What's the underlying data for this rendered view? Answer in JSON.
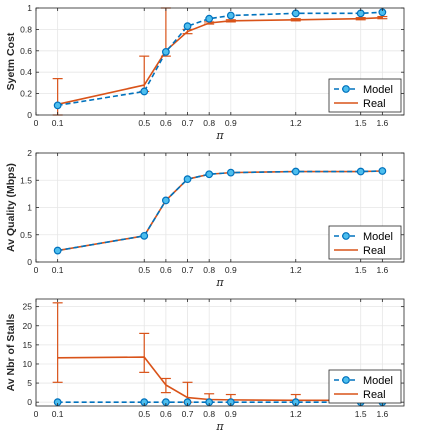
{
  "colors": {
    "model": "#0072BD",
    "real": "#D95319",
    "marker_face": "#4DBEEE",
    "grid": "#e6e6e6",
    "axis": "#262626"
  },
  "chart_data": [
    {
      "type": "line",
      "ylabel": "Syetm Cost",
      "xlabel": "π",
      "xlim": [
        0,
        1.7
      ],
      "ylim": [
        0,
        1
      ],
      "xticks": [
        0,
        0.1,
        0.5,
        0.6,
        0.7,
        0.8,
        0.9,
        1.2,
        1.5,
        1.6
      ],
      "xtick_labels": [
        "0",
        "0.1",
        "0.5",
        "0.6",
        "0.7",
        "0.8",
        "0.9",
        "1.2",
        "1.5",
        "1.6"
      ],
      "yticks": [
        0,
        0.2,
        0.4,
        0.6,
        0.8,
        1
      ],
      "ytick_labels": [
        "0",
        "0.2",
        "0.4",
        "0.6",
        "0.8",
        "1"
      ],
      "x": [
        0.1,
        0.5,
        0.6,
        0.7,
        0.8,
        0.9,
        1.2,
        1.5,
        1.6
      ],
      "series": [
        {
          "name": "Model",
          "values": [
            0.09,
            0.22,
            0.59,
            0.83,
            0.9,
            0.93,
            0.95,
            0.95,
            0.96
          ]
        },
        {
          "name": "Real",
          "values": [
            0.1,
            0.28,
            0.6,
            0.78,
            0.86,
            0.88,
            0.89,
            0.9,
            0.91
          ],
          "err_low": [
            0.0,
            0.22,
            0.55,
            0.76,
            0.85,
            0.87,
            0.88,
            0.89,
            0.9
          ],
          "err_high": [
            0.34,
            0.55,
            1.0,
            0.8,
            0.87,
            0.89,
            0.9,
            0.91,
            0.92
          ]
        }
      ],
      "legend": "bottom-right",
      "grid": true
    },
    {
      "type": "line",
      "ylabel": "Av Quality (Mbps)",
      "xlabel": "π",
      "xlim": [
        0,
        1.7
      ],
      "ylim": [
        0,
        2
      ],
      "xticks": [
        0,
        0.1,
        0.5,
        0.6,
        0.7,
        0.8,
        0.9,
        1.2,
        1.5,
        1.6
      ],
      "xtick_labels": [
        "0",
        "0.1",
        "0.5",
        "0.6",
        "0.7",
        "0.8",
        "0.9",
        "1.2",
        "1.5",
        "1.6"
      ],
      "yticks": [
        0,
        0.5,
        1,
        1.5,
        2
      ],
      "ytick_labels": [
        "0",
        "0.5",
        "1",
        "1.5",
        "2"
      ],
      "x": [
        0.1,
        0.5,
        0.6,
        0.7,
        0.8,
        0.9,
        1.2,
        1.5,
        1.6
      ],
      "series": [
        {
          "name": "Model",
          "values": [
            0.21,
            0.48,
            1.13,
            1.52,
            1.61,
            1.64,
            1.66,
            1.66,
            1.67
          ]
        },
        {
          "name": "Real",
          "values": [
            0.21,
            0.48,
            1.13,
            1.52,
            1.61,
            1.64,
            1.66,
            1.66,
            1.67
          ]
        }
      ],
      "legend": "bottom-right",
      "grid": true
    },
    {
      "type": "line",
      "ylabel": "Av Nbr of Stalls",
      "xlabel": "π",
      "xlim": [
        0,
        1.7
      ],
      "ylim": [
        -1,
        27
      ],
      "xticks": [
        0,
        0.1,
        0.5,
        0.6,
        0.7,
        0.8,
        0.9,
        1.2,
        1.5,
        1.6
      ],
      "xtick_labels": [
        "0",
        "0.1",
        "0.5",
        "0.6",
        "0.7",
        "0.8",
        "0.9",
        "1.2",
        "1.5",
        "1.6"
      ],
      "yticks": [
        0,
        5,
        10,
        15,
        20,
        25
      ],
      "ytick_labels": [
        "0",
        "5",
        "10",
        "15",
        "20",
        "25"
      ],
      "x": [
        0.1,
        0.5,
        0.6,
        0.7,
        0.8,
        0.9,
        1.2,
        1.5,
        1.6
      ],
      "series": [
        {
          "name": "Model",
          "values": [
            0,
            0,
            0,
            0,
            0,
            0,
            0,
            0,
            0
          ]
        },
        {
          "name": "Real",
          "values": [
            11.6,
            11.8,
            4.5,
            1.2,
            0.7,
            0.6,
            0.5,
            0.5,
            0.6
          ],
          "err_low": [
            5.2,
            7.8,
            2.5,
            0.0,
            0.0,
            0.0,
            0.0,
            0.0,
            0.0
          ],
          "err_high": [
            26.0,
            18.0,
            6.2,
            5.2,
            2.2,
            2.0,
            2.0,
            1.8,
            1.8
          ]
        }
      ],
      "legend": "bottom-right",
      "grid": true
    }
  ]
}
